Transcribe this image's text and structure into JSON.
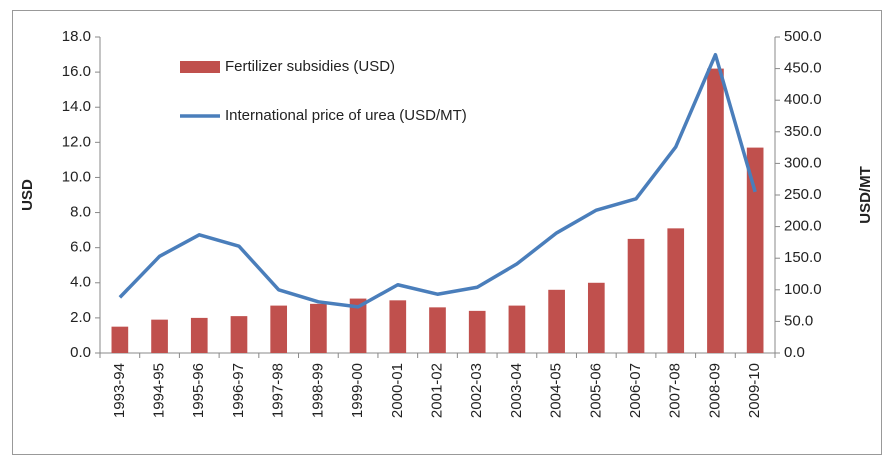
{
  "chart_data": {
    "type": "bar-line",
    "y_label": "USD",
    "y2_label": "USD/MT",
    "categories": [
      "1993-94",
      "1994-95",
      "1995-96",
      "1996-97",
      "1997-98",
      "1998-99",
      "1999-00",
      "2000-01",
      "2001-02",
      "2002-03",
      "2003-04",
      "2004-05",
      "2005-06",
      "2006-07",
      "2007-08",
      "2008-09",
      "2009-10"
    ],
    "series": [
      {
        "name": "Fertilizer subsidies (USD)",
        "type": "bar",
        "color": "#c0504d",
        "values": [
          1.5,
          1.9,
          2.0,
          2.1,
          2.7,
          2.8,
          3.1,
          3.0,
          2.6,
          2.4,
          2.7,
          3.6,
          4.0,
          6.5,
          7.1,
          16.2,
          11.7
        ]
      },
      {
        "name": "International price of urea (USD/MT)",
        "type": "line",
        "axis": "y2",
        "color": "#4a7ebb",
        "values": [
          88,
          153,
          187,
          169,
          100,
          81,
          73,
          108,
          93,
          104,
          141,
          190,
          226,
          244,
          326,
          472,
          255
        ]
      }
    ],
    "ylim": [
      0,
      18
    ],
    "yticks": [
      {
        "value": 0,
        "label": "0.0"
      },
      {
        "value": 2,
        "label": "2.0"
      },
      {
        "value": 4,
        "label": "4.0"
      },
      {
        "value": 6,
        "label": "6.0"
      },
      {
        "value": 8,
        "label": "8.0"
      },
      {
        "value": 10,
        "label": "10.0"
      },
      {
        "value": 12,
        "label": "12.0"
      },
      {
        "value": 14,
        "label": "14.0"
      },
      {
        "value": 16,
        "label": "16.0"
      },
      {
        "value": 18,
        "label": "18.0"
      }
    ],
    "y2lim": [
      0,
      500
    ],
    "y2ticks": [
      {
        "value": 0,
        "label": "0.0"
      },
      {
        "value": 50,
        "label": "50.0"
      },
      {
        "value": 100,
        "label": "100.0"
      },
      {
        "value": 150,
        "label": "150.0"
      },
      {
        "value": 200,
        "label": "200.0"
      },
      {
        "value": 250,
        "label": "250.0"
      },
      {
        "value": 300,
        "label": "300.0"
      },
      {
        "value": 350,
        "label": "350.0"
      },
      {
        "value": 400,
        "label": "400.0"
      },
      {
        "value": 450,
        "label": "450.0"
      },
      {
        "value": 500,
        "label": "500.0"
      }
    ],
    "grid": false,
    "legend": "top-left"
  }
}
